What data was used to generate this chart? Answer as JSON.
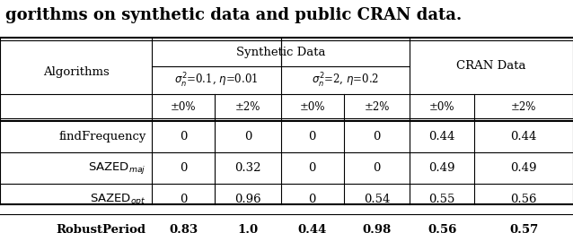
{
  "title": "gorithms on synthetic data and public CRAN data.",
  "col_header_level1": [
    "",
    "Synthetic Data",
    "",
    "CRAN Data"
  ],
  "col_header_level2": [
    "",
    "σ²ₙ=0.1, η=0.01",
    "",
    "σ²ₙ=2, η=0.2",
    "",
    ""
  ],
  "col_header_level3": [
    "Algorithms",
    "±0%",
    "±2%",
    "±0%",
    "±2%",
    "±0%",
    "±2%"
  ],
  "rows": [
    {
      "name": "findFrequency",
      "italic": false,
      "bold": false,
      "values": [
        "0",
        "0",
        "0",
        "0",
        "0.44",
        "0.44"
      ]
    },
    {
      "name": "SAZED",
      "subscript": "maj",
      "italic": false,
      "bold": false,
      "values": [
        "0",
        "0.32",
        "0",
        "0",
        "0.49",
        "0.49"
      ]
    },
    {
      "name": "SAZED",
      "subscript": "opt",
      "italic": false,
      "bold": false,
      "values": [
        "0",
        "0.96",
        "0",
        "0.54",
        "0.55",
        "0.56"
      ]
    },
    {
      "name": "RobustPeriod",
      "italic": false,
      "bold": true,
      "values": [
        "0.83",
        "1.0",
        "0.44",
        "0.98",
        "0.56",
        "0.57"
      ]
    }
  ],
  "synth_span": 4,
  "cran_span": 2,
  "background_color": "#ffffff"
}
